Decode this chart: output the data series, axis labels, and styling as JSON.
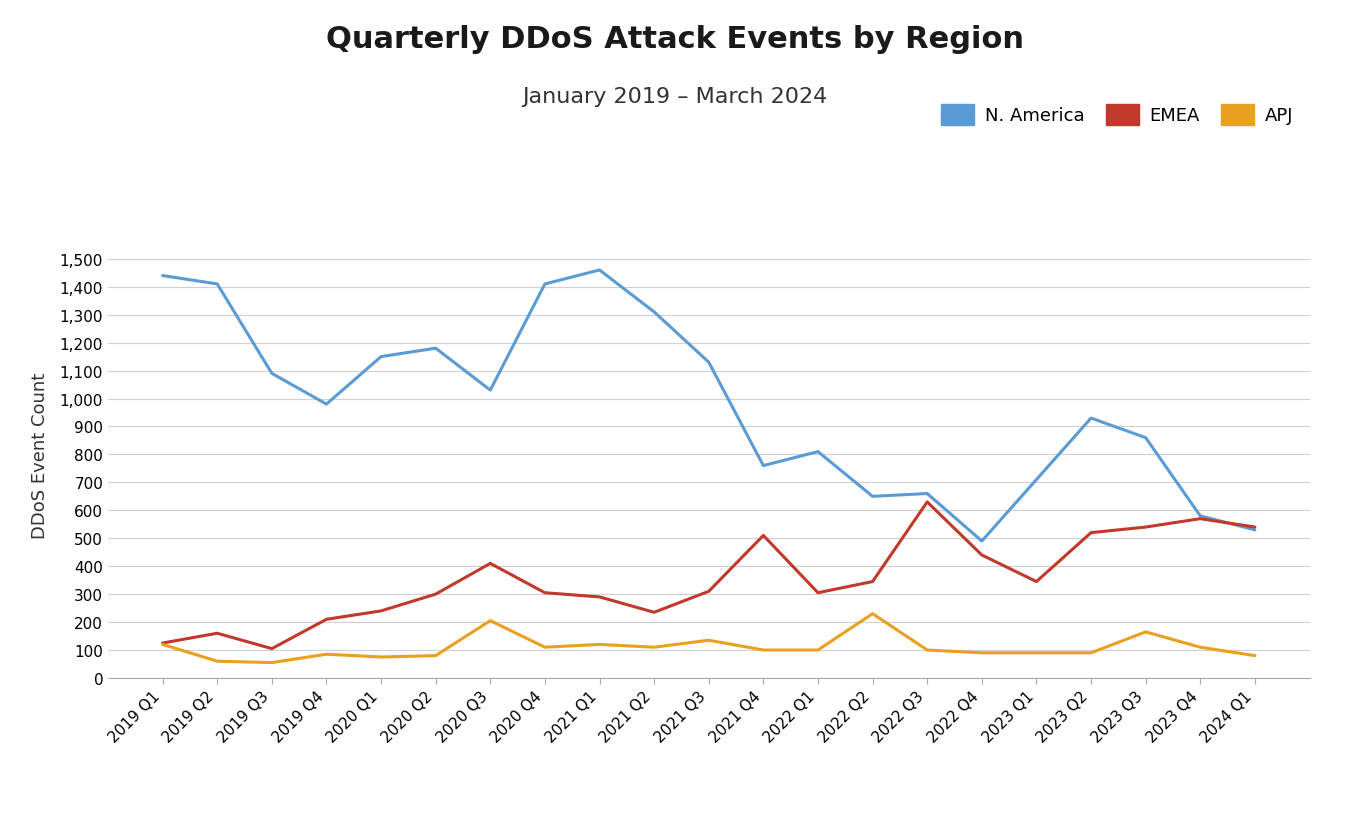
{
  "title": "Quarterly DDoS Attack Events by Region",
  "subtitle": "January 2019 – March 2024",
  "ylabel": "DDoS Event Count",
  "categories": [
    "2019 Q1",
    "2019 Q2",
    "2019 Q3",
    "2019 Q4",
    "2020 Q1",
    "2020 Q2",
    "2020 Q3",
    "2020 Q4",
    "2021 Q1",
    "2021 Q2",
    "2021 Q3",
    "2021 Q4",
    "2022 Q1",
    "2022 Q2",
    "2022 Q3",
    "2022 Q4",
    "2023 Q1",
    "2023 Q2",
    "2023 Q3",
    "2023 Q4",
    "2024 Q1"
  ],
  "series": [
    {
      "name": "N. America",
      "color": "#5B9BD5",
      "values": [
        1440,
        1410,
        1090,
        980,
        1150,
        1180,
        1030,
        1410,
        1460,
        1310,
        1130,
        760,
        810,
        650,
        660,
        490,
        710,
        930,
        860,
        580,
        530
      ]
    },
    {
      "name": "EMEA",
      "color": "#C0392B",
      "values": [
        125,
        160,
        105,
        210,
        240,
        300,
        410,
        305,
        290,
        235,
        310,
        510,
        305,
        345,
        630,
        440,
        345,
        520,
        540,
        570,
        540
      ]
    },
    {
      "name": "APJ",
      "color": "#E8A020",
      "values": [
        120,
        60,
        55,
        85,
        75,
        80,
        205,
        110,
        120,
        110,
        135,
        100,
        100,
        230,
        100,
        90,
        90,
        90,
        165,
        110,
        80
      ]
    }
  ],
  "ylim": [
    0,
    1600
  ],
  "yticks": [
    0,
    100,
    200,
    300,
    400,
    500,
    600,
    700,
    800,
    900,
    1000,
    1100,
    1200,
    1300,
    1400,
    1500
  ],
  "background_color": "#ffffff",
  "grid_color": "#d0d0d0",
  "title_fontsize": 22,
  "subtitle_fontsize": 16,
  "legend_fontsize": 13,
  "axis_label_fontsize": 13,
  "tick_fontsize": 11
}
